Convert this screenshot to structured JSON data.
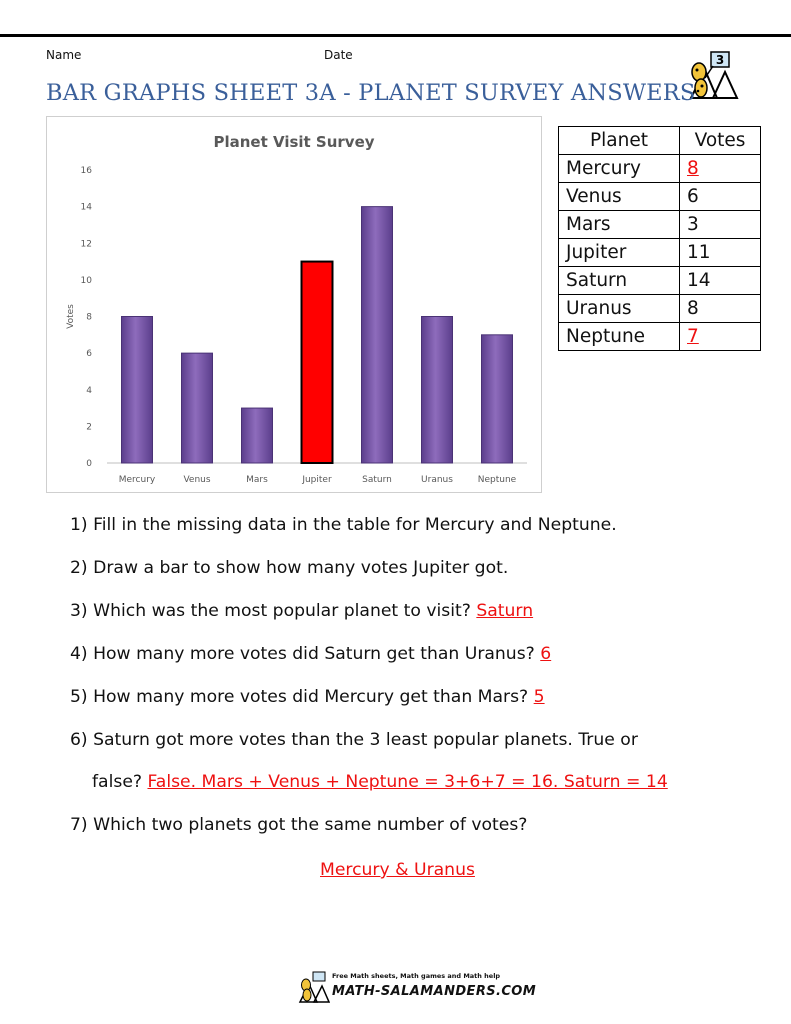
{
  "header": {
    "name_label": "Name",
    "date_label": "Date",
    "logo_grade": "3",
    "title": "BAR GRAPHS SHEET 3A - PLANET SURVEY ANSWERS"
  },
  "chart_data": {
    "type": "bar",
    "title": "Planet Visit Survey",
    "xlabel": "",
    "ylabel": "Votes",
    "categories": [
      "Mercury",
      "Venus",
      "Mars",
      "Jupiter",
      "Saturn",
      "Uranus",
      "Neptune"
    ],
    "values": [
      8,
      6,
      3,
      11,
      14,
      8,
      7
    ],
    "ylim": [
      0,
      16
    ],
    "yticks": [
      0,
      2,
      4,
      6,
      8,
      10,
      12,
      14,
      16
    ],
    "grid": false,
    "bar_color": "#7b5aa6",
    "highlight_category": "Jupiter",
    "highlight_color": "#ff0000"
  },
  "table": {
    "headers": [
      "Planet",
      "Votes"
    ],
    "rows": [
      {
        "planet": "Mercury",
        "votes": "8",
        "answer": true
      },
      {
        "planet": "Venus",
        "votes": "6",
        "answer": false
      },
      {
        "planet": "Mars",
        "votes": "3",
        "answer": false
      },
      {
        "planet": "Jupiter",
        "votes": "11",
        "answer": false
      },
      {
        "planet": "Saturn",
        "votes": "14",
        "answer": false
      },
      {
        "planet": "Uranus",
        "votes": "8",
        "answer": false
      },
      {
        "planet": "Neptune",
        "votes": "7",
        "answer": true
      }
    ]
  },
  "questions": {
    "q1": "1) Fill in the missing data in the table for Mercury and Neptune.",
    "q2": "2) Draw a bar to show how many votes Jupiter got.",
    "q3": "3) Which was the most popular planet to visit?",
    "a3": "Saturn",
    "q4": "4) How many more votes did Saturn get than Uranus?",
    "a4": "6",
    "q5": "5) How many more votes did Mercury get than Mars?",
    "a5": "5",
    "q6": "6) Saturn got more votes than the 3 least popular planets. True or",
    "q6b": "false?",
    "a6": "False. Mars + Venus + Neptune = 3+6+7 = 16. Saturn = 14",
    "q7": "7) Which two planets got the same number of votes?",
    "a7": "Mercury & Uranus"
  },
  "footer": {
    "tagline": "Free Math sheets, Math games and Math help",
    "site": "MATH-SALAMANDERS.COM"
  },
  "colors": {
    "title_blue": "#3a5f9a",
    "answer_red": "#e11111"
  }
}
